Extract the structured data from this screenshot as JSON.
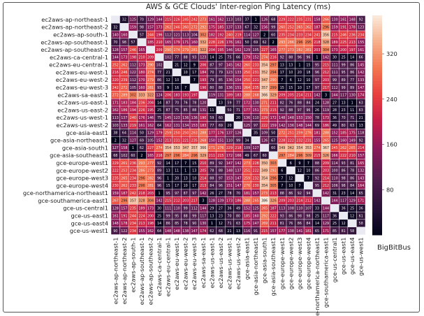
{
  "chart_data": {
    "type": "heatmap",
    "title": "AWS & GCE Clouds' Inter-region Ping Latency (ms)",
    "xlabel": "",
    "ylabel": "",
    "row_labels": [
      "ec2aws-ap-northeast-1",
      "ec2aws-ap-northeast-2",
      "ec2aws-ap-south-1",
      "ec2aws-ap-southeast-1",
      "ec2aws-ap-southeast-2",
      "ec2aws-ca-central-1",
      "ec2aws-eu-central-1",
      "ec2aws-eu-west-1",
      "ec2aws-eu-west-2",
      "ec2aws-eu-west-3",
      "ec2aws-sa-east-1",
      "ec2aws-us-east-1",
      "ec2aws-us-east-2",
      "ec2aws-us-west-1",
      "ec2aws-us-west-2",
      "gce-asia-east1",
      "gce-asia-northeast1",
      "gce-asia-south1",
      "gce-asia-southeast1",
      "gce-europe-west1",
      "gce-europe-west2",
      "gce-europe-west3",
      "gce-europe-west4",
      "gce-northamerica-northeast1",
      "gce-southamerica-east1",
      "gce-us-central1",
      "gce-us-east1",
      "gce-us-east4",
      "gce-us-west1"
    ],
    "col_labels": [
      "ec2aws-ap-northeast-1",
      "ec2aws-ap-northeast-2",
      "ec2aws-ap-south-1",
      "ec2aws-ap-southeast-1",
      "ec2aws-ap-southeast-2",
      "ec2aws-ca-central-1",
      "ec2aws-eu-central-1",
      "ec2aws-eu-west-1",
      "ec2aws-eu-west-2",
      "ec2aws-eu-west-3",
      "ec2aws-sa-east-1",
      "ec2aws-us-east-1",
      "ec2aws-us-east-2",
      "ec2aws-us-west-1",
      "ec2aws-us-west-2",
      "gce-asia-east1",
      "gce-asia-northeast1",
      "gce-asia-south1",
      "gce-asia-southeast1",
      "gce-europe-west1",
      "gce-europe-west2",
      "gce-europe-west3",
      "gce-europe-west4",
      "gce-northamerica-northeast1",
      "gce-southamerica-east1",
      "gce-us-central1",
      "gce-us-east1",
      "gce-us-east4",
      "gce-us-west1"
    ],
    "values": [
      [
        null,
        32,
        125,
        70,
        129,
        144,
        215,
        226,
        245,
        242,
        273,
        161,
        162,
        113,
        103,
        37,
        1,
        126,
        68,
        229,
        222,
        235,
        231,
        158,
        266,
        130,
        161,
        148,
        92
      ],
      [
        32,
        null,
        159,
        98,
        157,
        173,
        262,
        246,
        260,
        272,
        292,
        175,
        185,
        137,
        133,
        67,
        32,
        156,
        99,
        260,
        252,
        265,
        262,
        187,
        296,
        159,
        191,
        178,
        123
      ],
      [
        140,
        160,
        null,
        57,
        244,
        196,
        112,
        121,
        113,
        104,
        302,
        182,
        192,
        240,
        219,
        114,
        127,
        2,
        60,
        235,
        234,
        233,
        234,
        241,
        356,
        215,
        246,
        236,
        234
      ],
      [
        70,
        98,
        57,
        null,
        185,
        210,
        165,
        179,
        171,
        160,
        332,
        228,
        226,
        176,
        161,
        50,
        69,
        62,
        2,
        293,
        286,
        296,
        295,
        218,
        328,
        189,
        225,
        213,
        155
      ],
      [
        128,
        157,
        246,
        165,
        null,
        209,
        290,
        274,
        279,
        281,
        322,
        204,
        195,
        146,
        162,
        129,
        105,
        227,
        165,
        277,
        273,
        282,
        281,
        203,
        304,
        173,
        200,
        197,
        161
      ],
      [
        144,
        173,
        198,
        210,
        209,
        null,
        102,
        77,
        88,
        93,
        123,
        14,
        25,
        75,
        66,
        179,
        152,
        274,
        216,
        92,
        88,
        96,
        96,
        1,
        142,
        30,
        25,
        14,
        66
      ],
      [
        252,
        262,
        112,
        173,
        290,
        102,
        null,
        21,
        12,
        9,
        206,
        87,
        97,
        145,
        162,
        260,
        233,
        354,
        297,
        13,
        13,
        1,
        15,
        95,
        215,
        111,
        99,
        86,
        145
      ],
      [
        216,
        246,
        122,
        180,
        274,
        77,
        21,
        null,
        10,
        17,
        184,
        70,
        79,
        123,
        133,
        250,
        231,
        352,
        294,
        17,
        10,
        20,
        18,
        96,
        212,
        111,
        95,
        86,
        142
      ],
      [
        220,
        239,
        112,
        170,
        279,
        86,
        12,
        10,
        null,
        7,
        193,
        79,
        85,
        136,
        154,
        250,
        221,
        347,
        290,
        7,
        6,
        12,
        10,
        97,
        203,
        99,
        89,
        77,
        133
      ],
      [
        242,
        272,
        105,
        160,
        281,
        93,
        9,
        16,
        7,
        null,
        196,
        80,
        88,
        136,
        151,
        264,
        235,
        357,
        299,
        15,
        15,
        10,
        17,
        97,
        217,
        112,
        99,
        89,
        147
      ],
      [
        272,
        289,
        302,
        333,
        322,
        124,
        206,
        183,
        193,
        197,
        null,
        119,
        131,
        189,
        183,
        288,
        268,
        366,
        329,
        209,
        205,
        214,
        211,
        142,
        3,
        144,
        117,
        130,
        174
      ],
      [
        171,
        183,
        184,
        236,
        204,
        14,
        87,
        70,
        76,
        78,
        120,
        null,
        13,
        59,
        77,
        172,
        130,
        271,
        211,
        82,
        76,
        88,
        84,
        24,
        128,
        27,
        13,
        1,
        63
      ],
      [
        162,
        186,
        194,
        226,
        195,
        25,
        87,
        75,
        85,
        88,
        131,
        11,
        null,
        50,
        71,
        177,
        151,
        273,
        215,
        92,
        88,
        97,
        96,
        26,
        119,
        28,
        23,
        11,
        63
      ],
      [
        113,
        137,
        240,
        176,
        146,
        75,
        145,
        123,
        136,
        136,
        190,
        59,
        60,
        null,
        20,
        136,
        110,
        229,
        172,
        148,
        148,
        153,
        150,
        78,
        173,
        36,
        70,
        71,
        21
      ],
      [
        103,
        133,
        219,
        161,
        162,
        64,
        162,
        131,
        134,
        153,
        183,
        77,
        69,
        20,
        null,
        125,
        97,
        222,
        159,
        142,
        136,
        148,
        144,
        69,
        186,
        49,
        80,
        63,
        13
      ],
      [
        38,
        64,
        114,
        50,
        129,
        179,
        259,
        250,
        250,
        263,
        288,
        177,
        176,
        137,
        126,
        null,
        35,
        109,
        50,
        272,
        251,
        259,
        276,
        181,
        288,
        152,
        185,
        175,
        118
      ],
      [
        2,
        32,
        127,
        69,
        105,
        152,
        213,
        231,
        221,
        235,
        268,
        150,
        151,
        110,
        99,
        34,
        null,
        126,
        67,
        228,
        222,
        232,
        231,
        155,
        265,
        125,
        160,
        149,
        92
      ],
      [
        127,
        158,
        1,
        62,
        227,
        274,
        354,
        353,
        347,
        357,
        366,
        271,
        276,
        229,
        218,
        109,
        127,
        null,
        60,
        349,
        342,
        354,
        353,
        274,
        367,
        245,
        262,
        265,
        214
      ],
      [
        68,
        102,
        60,
        2,
        165,
        216,
        297,
        296,
        284,
        296,
        329,
        211,
        215,
        172,
        166,
        49,
        67,
        60,
        null,
        297,
        284,
        296,
        309,
        215,
        326,
        166,
        222,
        210,
        157
      ],
      [
        229,
        261,
        236,
        293,
        277,
        92,
        14,
        17,
        7,
        15,
        210,
        89,
        92,
        147,
        142,
        273,
        228,
        350,
        303,
        null,
        6,
        9,
        7,
        88,
        209,
        114,
        93,
        81,
        165
      ],
      [
        222,
        253,
        234,
        286,
        273,
        89,
        13,
        11,
        1,
        13,
        205,
        78,
        88,
        148,
        137,
        251,
        222,
        349,
        292,
        6,
        null,
        12,
        10,
        86,
        203,
        100,
        86,
        78,
        132
      ],
      [
        235,
        265,
        234,
        296,
        282,
        96,
        1,
        20,
        13,
        10,
        214,
        88,
        97,
        153,
        147,
        259,
        232,
        354,
        296,
        7,
        12,
        null,
        7,
        92,
        214,
        110,
        98,
        86,
        143
      ],
      [
        230,
        262,
        233,
        296,
        281,
        96,
        15,
        17,
        10,
        17,
        213,
        84,
        96,
        151,
        147,
        276,
        230,
        354,
        305,
        7,
        10,
        7,
        null,
        95,
        212,
        106,
        98,
        84,
        164
      ],
      [
        159,
        187,
        242,
        218,
        203,
        1,
        95,
        97,
        87,
        97,
        142,
        26,
        27,
        78,
        70,
        181,
        157,
        273,
        213,
        88,
        86,
        92,
        94,
        null,
        142,
        31,
        23,
        14,
        65
      ],
      [
        267,
        296,
        357,
        328,
        304,
        142,
        215,
        212,
        203,
        217,
        3,
        128,
        139,
        173,
        186,
        288,
        265,
        386,
        326,
        209,
        203,
        214,
        212,
        142,
        null,
        144,
        117,
        129,
        171
      ],
      [
        128,
        157,
        235,
        189,
        173,
        30,
        111,
        110,
        99,
        112,
        144,
        29,
        27,
        36,
        49,
        152,
        125,
        265,
        187,
        113,
        108,
        110,
        107,
        33,
        144,
        null,
        36,
        25,
        36
      ],
      [
        161,
        191,
        244,
        224,
        200,
        25,
        99,
        95,
        88,
        99,
        117,
        13,
        23,
        70,
        80,
        185,
        160,
        292,
        222,
        93,
        86,
        98,
        98,
        25,
        117,
        36,
        null,
        12,
        61
      ],
      [
        148,
        178,
        234,
        213,
        198,
        14,
        86,
        85,
        78,
        90,
        130,
        1,
        12,
        71,
        63,
        175,
        147,
        269,
        211,
        81,
        76,
        86,
        84,
        14,
        129,
        25,
        12,
        null,
        58
      ],
      [
        90,
        122,
        234,
        155,
        162,
        64,
        148,
        148,
        138,
        147,
        174,
        62,
        68,
        21,
        13,
        116,
        91,
        215,
        157,
        177,
        138,
        141,
        181,
        65,
        171,
        85,
        81,
        58,
        null
      ]
    ],
    "colorbar": {
      "vmin": 0,
      "vmax": 388,
      "ticks": [
        80,
        160,
        240,
        320
      ],
      "colormap": "rocket"
    },
    "colors": {
      "low": "#03051a",
      "mid": "#a11a5b",
      "high": "#faebdd",
      "missing": "#eaeaf2"
    }
  },
  "watermark": "BigBitBus"
}
